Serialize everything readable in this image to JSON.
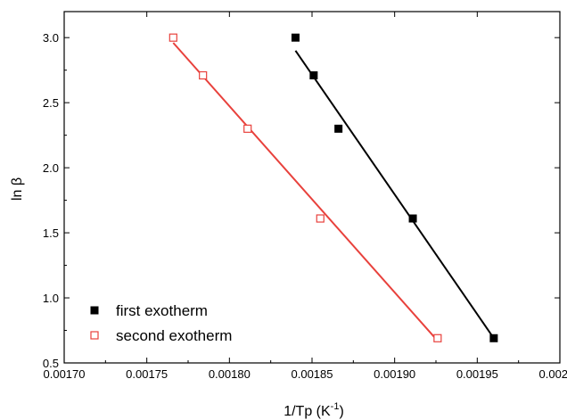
{
  "chart_data": {
    "type": "scatter",
    "xlabel": "1/Tp (K",
    "xlabel_sup": "-1",
    "xlabel_close": ")",
    "ylabel": "ln β",
    "xlim": [
      0.0017,
      0.002
    ],
    "ylim": [
      0.5,
      3.2
    ],
    "x_ticks": [
      0.0017,
      0.00175,
      0.0018,
      0.00185,
      0.0019,
      0.00195,
      0.002
    ],
    "x_tick_labels": [
      "0.00170",
      "0.00175",
      "0.00180",
      "0.00185",
      "0.00190",
      "0.00195",
      "0.00200"
    ],
    "y_ticks": [
      0.5,
      1.0,
      1.5,
      2.0,
      2.5,
      3.0
    ],
    "y_tick_labels": [
      "0.5",
      "1.0",
      "1.5",
      "2.0",
      "2.5",
      "3.0"
    ],
    "grid": false,
    "legend_position": "bottom-left",
    "series": [
      {
        "name": "first exotherm",
        "marker": "filled-square",
        "color": "#000000",
        "line_color": "#000000",
        "x": [
          0.00184,
          0.001851,
          0.001866,
          0.001911,
          0.00196
        ],
        "y": [
          3.0,
          2.71,
          2.3,
          1.61,
          0.69
        ],
        "fit": [
          [
            0.00184,
            2.9
          ],
          [
            0.00196,
            0.69
          ]
        ]
      },
      {
        "name": "second exotherm",
        "marker": "open-square",
        "color": "#e8413c",
        "line_color": "#e8413c",
        "x": [
          0.001766,
          0.001784,
          0.001811,
          0.001855,
          0.001926
        ],
        "y": [
          3.0,
          2.71,
          2.3,
          1.61,
          0.69
        ],
        "fit": [
          [
            0.001766,
            2.96
          ],
          [
            0.001926,
            0.67
          ]
        ]
      }
    ]
  }
}
